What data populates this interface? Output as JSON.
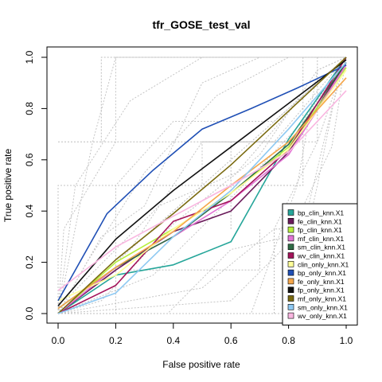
{
  "chart_data": {
    "type": "line",
    "title": "tfr_GOSE_test_val",
    "xlabel": "False positive rate",
    "ylabel": "True positive rate",
    "xlim": [
      0,
      1
    ],
    "ylim": [
      0,
      1
    ],
    "x_ticks": [
      "0.0",
      "0.2",
      "0.4",
      "0.6",
      "0.8",
      "1.0"
    ],
    "y_ticks": [
      "0.0",
      "0.2",
      "0.4",
      "0.6",
      "0.8",
      "1.0"
    ],
    "legend_position": "bottom-right",
    "background_curves": [
      [
        [
          0,
          0
        ],
        [
          0.02,
          0.33
        ],
        [
          0.2,
          0.67
        ],
        [
          0.2,
          1.0
        ],
        [
          1,
          1
        ]
      ],
      [
        [
          0,
          0
        ],
        [
          0.06,
          0.5
        ],
        [
          0.25,
          0.83
        ],
        [
          0.5,
          1.0
        ],
        [
          1,
          1
        ]
      ],
      [
        [
          0,
          0
        ],
        [
          0.1,
          0.2
        ],
        [
          0.3,
          0.55
        ],
        [
          0.55,
          0.85
        ],
        [
          0.8,
          1.0
        ],
        [
          1,
          1
        ]
      ],
      [
        [
          0,
          0
        ],
        [
          0.25,
          0.25
        ],
        [
          0.5,
          0.67
        ],
        [
          0.75,
          0.67
        ],
        [
          1,
          1
        ]
      ],
      [
        [
          0,
          0
        ],
        [
          0.15,
          0.05
        ],
        [
          0.4,
          0.35
        ],
        [
          0.7,
          0.62
        ],
        [
          0.9,
          0.95
        ],
        [
          1,
          1
        ]
      ],
      [
        [
          0,
          0
        ],
        [
          0.33,
          0.15
        ],
        [
          0.6,
          0.45
        ],
        [
          0.85,
          0.75
        ],
        [
          1,
          1
        ]
      ],
      [
        [
          0,
          0
        ],
        [
          0.5,
          0.1
        ],
        [
          0.75,
          0.33
        ],
        [
          0.9,
          0.67
        ],
        [
          1,
          1
        ]
      ],
      [
        [
          0,
          0
        ],
        [
          0.6,
          0.05
        ],
        [
          0.85,
          0.33
        ],
        [
          0.95,
          0.8
        ],
        [
          1,
          1
        ]
      ],
      [
        [
          0,
          0
        ],
        [
          0.67,
          0.0
        ],
        [
          0.83,
          0.5
        ],
        [
          0.9,
          0.95
        ],
        [
          1,
          1
        ]
      ],
      [
        [
          0,
          0
        ],
        [
          0.8,
          0.0
        ],
        [
          0.9,
          0.5
        ],
        [
          0.97,
          0.9
        ],
        [
          1,
          1
        ]
      ],
      [
        [
          0,
          0
        ],
        [
          0.05,
          0.08
        ],
        [
          0.35,
          0.42
        ],
        [
          0.62,
          0.55
        ],
        [
          0.85,
          0.85
        ],
        [
          1,
          1
        ]
      ],
      [
        [
          0,
          0
        ],
        [
          0.0,
          0.5
        ],
        [
          0.2,
          0.5
        ],
        [
          0.4,
          0.75
        ],
        [
          0.75,
          0.75
        ],
        [
          1,
          1
        ]
      ],
      [
        [
          0,
          0
        ],
        [
          0.12,
          0.67
        ],
        [
          0.2,
          1.0
        ]
      ],
      [
        [
          0,
          0
        ],
        [
          0.38,
          0.0
        ],
        [
          0.6,
          0.25
        ],
        [
          0.8,
          0.3
        ],
        [
          0.95,
          0.65
        ],
        [
          1,
          1
        ]
      ],
      [
        [
          0,
          0
        ],
        [
          0.15,
          0.3
        ],
        [
          0.3,
          0.42
        ],
        [
          0.5,
          0.9
        ],
        [
          0.7,
          1.0
        ]
      ],
      [
        [
          0,
          0
        ],
        [
          0.5,
          0.5
        ],
        [
          0.5,
          0.67
        ],
        [
          0.83,
          0.67
        ],
        [
          1,
          1
        ]
      ]
    ],
    "background_steps": [
      [
        [
          0,
          0
        ],
        [
          0.2,
          0
        ],
        [
          0.2,
          0.5
        ],
        [
          0.4,
          0.5
        ],
        [
          0.4,
          0.5
        ],
        [
          0.85,
          0.5
        ],
        [
          0.85,
          1
        ],
        [
          1,
          1
        ]
      ],
      [
        [
          0.15,
          0.67
        ],
        [
          0.9,
          0.67
        ],
        [
          0.9,
          1.0
        ]
      ],
      [
        [
          0.6,
          0.33
        ],
        [
          0.6,
          0.67
        ],
        [
          0.83,
          0.67
        ]
      ],
      [
        [
          0.75,
          0
        ],
        [
          0.75,
          0.33
        ],
        [
          0.97,
          0.33
        ]
      ],
      [
        [
          0.0,
          0.67
        ],
        [
          0.15,
          0.67
        ],
        [
          0.15,
          1.0
        ],
        [
          0.6,
          1.0
        ]
      ],
      [
        [
          0.25,
          0.17
        ],
        [
          0.7,
          0.17
        ],
        [
          0.7,
          0.33
        ]
      ]
    ],
    "series": [
      {
        "name": "bp_clin_knn.X1",
        "color": "#26a69a",
        "points": [
          [
            0,
            0
          ],
          [
            0.2,
            0.15
          ],
          [
            0.4,
            0.19
          ],
          [
            0.6,
            0.28
          ],
          [
            0.8,
            0.68
          ],
          [
            1,
            1
          ]
        ]
      },
      {
        "name": "fe_clin_knn.X1",
        "color": "#6a1b5a",
        "points": [
          [
            0,
            0
          ],
          [
            0.2,
            0.17
          ],
          [
            0.4,
            0.32
          ],
          [
            0.6,
            0.4
          ],
          [
            0.8,
            0.63
          ],
          [
            1,
            0.98
          ]
        ]
      },
      {
        "name": "fp_clin_knn.X1",
        "color": "#b7f03c",
        "points": [
          [
            0,
            0
          ],
          [
            0.2,
            0.2
          ],
          [
            0.4,
            0.33
          ],
          [
            0.6,
            0.47
          ],
          [
            0.8,
            0.65
          ],
          [
            1,
            0.96
          ]
        ]
      },
      {
        "name": "mf_clin_knn.X1",
        "color": "#e273d4",
        "points": [
          [
            0,
            0
          ],
          [
            0.2,
            0.18
          ],
          [
            0.4,
            0.3
          ],
          [
            0.6,
            0.44
          ],
          [
            0.8,
            0.62
          ],
          [
            1,
            0.97
          ]
        ]
      },
      {
        "name": "sm_clin_knn.X1",
        "color": "#2e6b45",
        "points": [
          [
            0,
            0.02
          ],
          [
            0.2,
            0.18
          ],
          [
            0.4,
            0.3
          ],
          [
            0.6,
            0.47
          ],
          [
            0.8,
            0.66
          ],
          [
            1,
            0.98
          ]
        ]
      },
      {
        "name": "wv_clin_knn.X1",
        "color": "#a3135a",
        "points": [
          [
            0,
            0
          ],
          [
            0.2,
            0.11
          ],
          [
            0.4,
            0.36
          ],
          [
            0.6,
            0.44
          ],
          [
            0.8,
            0.64
          ],
          [
            1,
            1
          ]
        ]
      },
      {
        "name": "clin_only_knn.X1",
        "color": "#ffff99",
        "points": [
          [
            0,
            0.05
          ],
          [
            0.2,
            0.15
          ],
          [
            0.4,
            0.33
          ],
          [
            0.6,
            0.47
          ],
          [
            0.8,
            0.64
          ],
          [
            1,
            0.95
          ]
        ]
      },
      {
        "name": "bp_only_knn.X1",
        "color": "#1f4fb5",
        "points": [
          [
            0,
            0.05
          ],
          [
            0.17,
            0.39
          ],
          [
            0.33,
            0.56
          ],
          [
            0.5,
            0.72
          ],
          [
            0.67,
            0.8
          ],
          [
            0.83,
            0.88
          ],
          [
            1,
            0.97
          ]
        ]
      },
      {
        "name": "fe_only_knn.X1",
        "color": "#f5a64a",
        "points": [
          [
            0,
            0.02
          ],
          [
            0.2,
            0.18
          ],
          [
            0.4,
            0.32
          ],
          [
            0.6,
            0.5
          ],
          [
            0.8,
            0.67
          ],
          [
            1,
            0.92
          ]
        ]
      },
      {
        "name": "fp_only_knn.X1",
        "color": "#111111",
        "points": [
          [
            0,
            0.03
          ],
          [
            0.2,
            0.29
          ],
          [
            0.4,
            0.48
          ],
          [
            0.6,
            0.65
          ],
          [
            0.8,
            0.82
          ],
          [
            1,
            0.99
          ]
        ]
      },
      {
        "name": "mf_only_knn.X1",
        "color": "#7a6a10",
        "points": [
          [
            0,
            0
          ],
          [
            0.2,
            0.21
          ],
          [
            0.4,
            0.39
          ],
          [
            0.6,
            0.58
          ],
          [
            0.8,
            0.79
          ],
          [
            1,
            1
          ]
        ]
      },
      {
        "name": "sm_only_knn.X1",
        "color": "#8ec9f2",
        "points": [
          [
            0,
            0
          ],
          [
            0.2,
            0.08
          ],
          [
            0.4,
            0.3
          ],
          [
            0.6,
            0.48
          ],
          [
            0.8,
            0.72
          ],
          [
            1,
            0.98
          ]
        ]
      },
      {
        "name": "wv_only_knn.X1",
        "color": "#f9b6e0",
        "points": [
          [
            0,
            0.09
          ],
          [
            0.2,
            0.26
          ],
          [
            0.4,
            0.38
          ],
          [
            0.6,
            0.5
          ],
          [
            0.8,
            0.63
          ],
          [
            1,
            0.87
          ]
        ]
      }
    ]
  }
}
